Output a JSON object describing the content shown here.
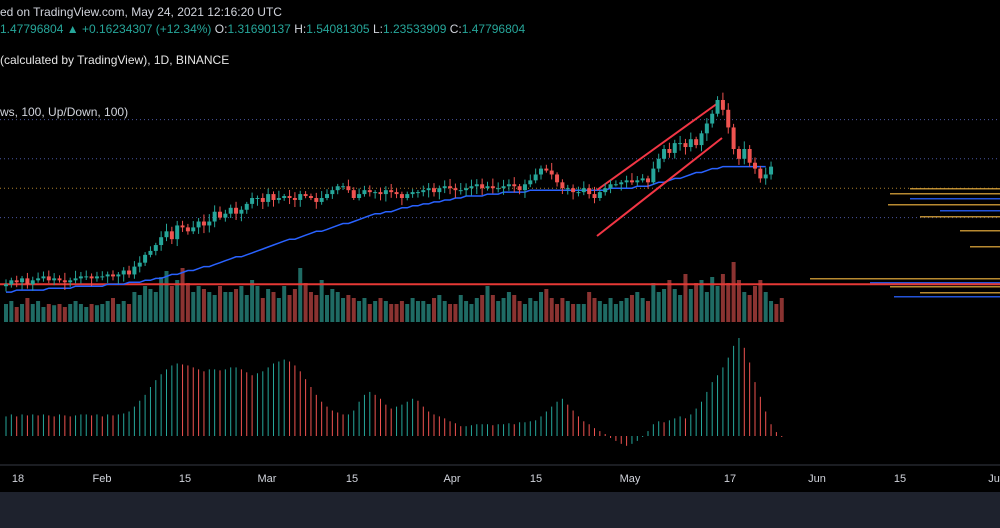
{
  "header": {
    "published": "ed on TradingView.com, May 24, 2021 12:16:20 UTC",
    "price": "1.47796804",
    "arrow": "▲",
    "change": "+0.16234307 (+12.34%)",
    "o_label": "O:",
    "o_value": "1.31690137",
    "h_label": "H:",
    "h_value": "1.54081305",
    "l_label": "L:",
    "l_value": "1.23533909",
    "c_label": "C:",
    "c_value": "1.47796804"
  },
  "symbol_line": "(calculated by TradingView), 1D, BINANCE",
  "volume_line": "ws, 100, Up/Down, 100)",
  "colors": {
    "up": "#26a69a",
    "down": "#ef5350",
    "ma": "#2962ff",
    "support": "#e53935",
    "channel": "#f23645",
    "grid_dotted": "#5d6cc7",
    "level_orange": "#d8a23a"
  },
  "chart_data": {
    "type": "candlestick",
    "title": "",
    "xlabel": "",
    "ylabel": "",
    "x_ticks": [
      "18",
      "Feb",
      "15",
      "Mar",
      "15",
      "Apr",
      "15",
      "May",
      "17",
      "Jun",
      "15",
      "Ju"
    ],
    "price_series": [
      0.56,
      0.58,
      0.57,
      0.59,
      0.56,
      0.58,
      0.59,
      0.6,
      0.58,
      0.59,
      0.58,
      0.57,
      0.58,
      0.59,
      0.6,
      0.6,
      0.59,
      0.6,
      0.6,
      0.61,
      0.6,
      0.61,
      0.63,
      0.61,
      0.65,
      0.67,
      0.71,
      0.73,
      0.76,
      0.8,
      0.83,
      0.79,
      0.86,
      0.85,
      0.83,
      0.85,
      0.88,
      0.86,
      0.88,
      0.93,
      0.9,
      0.92,
      0.95,
      0.92,
      0.94,
      0.97,
      1.0,
      1.0,
      0.98,
      1.02,
      0.99,
      1.0,
      1.01,
      1.0,
      0.99,
      1.02,
      1.01,
      1.0,
      0.98,
      1.0,
      1.02,
      1.04,
      1.06,
      1.06,
      1.04,
      1.0,
      1.02,
      1.04,
      1.03,
      1.03,
      1.02,
      1.04,
      1.03,
      1.02,
      1.0,
      1.02,
      1.03,
      1.03,
      1.04,
      1.05,
      1.03,
      1.05,
      1.06,
      1.05,
      1.04,
      1.04,
      1.05,
      1.06,
      1.07,
      1.05,
      1.06,
      1.05,
      1.05,
      1.06,
      1.07,
      1.06,
      1.04,
      1.07,
      1.09,
      1.12,
      1.15,
      1.14,
      1.12,
      1.08,
      1.05,
      1.05,
      1.03,
      1.03,
      1.05,
      1.02,
      1.0,
      1.03,
      1.05,
      1.07,
      1.07,
      1.08,
      1.09,
      1.08,
      1.09,
      1.1,
      1.08,
      1.15,
      1.2,
      1.25,
      1.23,
      1.28,
      1.28,
      1.26,
      1.3,
      1.27,
      1.33,
      1.38,
      1.43,
      1.5,
      1.45,
      1.36,
      1.25,
      1.2,
      1.25,
      1.18,
      1.15,
      1.1,
      1.12,
      1.16
    ],
    "ma_series": [
      0.52,
      0.52,
      0.53,
      0.53,
      0.53,
      0.53,
      0.53,
      0.53,
      0.54,
      0.54,
      0.54,
      0.54,
      0.54,
      0.55,
      0.55,
      0.55,
      0.55,
      0.55,
      0.55,
      0.56,
      0.56,
      0.56,
      0.56,
      0.57,
      0.57,
      0.57,
      0.58,
      0.58,
      0.59,
      0.59,
      0.6,
      0.61,
      0.61,
      0.62,
      0.63,
      0.63,
      0.64,
      0.65,
      0.65,
      0.66,
      0.67,
      0.68,
      0.69,
      0.7,
      0.7,
      0.71,
      0.72,
      0.73,
      0.74,
      0.75,
      0.76,
      0.77,
      0.78,
      0.79,
      0.79,
      0.8,
      0.81,
      0.82,
      0.83,
      0.83,
      0.84,
      0.85,
      0.86,
      0.87,
      0.87,
      0.88,
      0.89,
      0.9,
      0.91,
      0.92,
      0.92,
      0.93,
      0.93,
      0.94,
      0.95,
      0.95,
      0.96,
      0.96,
      0.97,
      0.97,
      0.98,
      0.98,
      0.99,
      0.99,
      1.0,
      1.0,
      1.01,
      1.01,
      1.01,
      1.01,
      1.02,
      1.02,
      1.02,
      1.03,
      1.03,
      1.03,
      1.03,
      1.03,
      1.04,
      1.04,
      1.04,
      1.04,
      1.04,
      1.04,
      1.04,
      1.04,
      1.04,
      1.04,
      1.04,
      1.04,
      1.04,
      1.04,
      1.04,
      1.05,
      1.05,
      1.05,
      1.05,
      1.05,
      1.06,
      1.06,
      1.06,
      1.07,
      1.08,
      1.08,
      1.09,
      1.1,
      1.1,
      1.11,
      1.12,
      1.13,
      1.13,
      1.14,
      1.15,
      1.15,
      1.16,
      1.16,
      1.16,
      1.16,
      1.16,
      1.16,
      1.16,
      1.16,
      1.16
    ],
    "volume_series": [
      0.3,
      0.35,
      0.25,
      0.3,
      0.4,
      0.3,
      0.35,
      0.25,
      0.3,
      0.28,
      0.3,
      0.25,
      0.3,
      0.35,
      0.3,
      0.25,
      0.3,
      0.28,
      0.3,
      0.35,
      0.4,
      0.3,
      0.35,
      0.3,
      0.5,
      0.45,
      0.6,
      0.55,
      0.5,
      0.75,
      0.85,
      0.6,
      0.7,
      0.9,
      0.65,
      0.5,
      0.6,
      0.55,
      0.5,
      0.45,
      0.6,
      0.5,
      0.5,
      0.55,
      0.6,
      0.45,
      0.7,
      0.6,
      0.4,
      0.55,
      0.5,
      0.4,
      0.6,
      0.45,
      0.55,
      0.9,
      0.65,
      0.5,
      0.45,
      0.7,
      0.45,
      0.55,
      0.5,
      0.4,
      0.45,
      0.4,
      0.35,
      0.4,
      0.3,
      0.35,
      0.4,
      0.35,
      0.3,
      0.3,
      0.35,
      0.3,
      0.4,
      0.35,
      0.35,
      0.3,
      0.4,
      0.45,
      0.35,
      0.3,
      0.3,
      0.45,
      0.35,
      0.3,
      0.4,
      0.45,
      0.6,
      0.45,
      0.35,
      0.4,
      0.5,
      0.45,
      0.35,
      0.3,
      0.4,
      0.35,
      0.5,
      0.55,
      0.4,
      0.3,
      0.4,
      0.35,
      0.3,
      0.3,
      0.3,
      0.5,
      0.4,
      0.35,
      0.3,
      0.4,
      0.3,
      0.35,
      0.4,
      0.45,
      0.5,
      0.4,
      0.35,
      0.65,
      0.5,
      0.55,
      0.7,
      0.55,
      0.45,
      0.8,
      0.55,
      0.65,
      0.7,
      0.5,
      0.75,
      0.6,
      0.8,
      0.65,
      1.0,
      0.7,
      0.5,
      0.45,
      0.6,
      0.7,
      0.5,
      0.35,
      0.3,
      0.4
    ],
    "oscillator_series": [
      0.2,
      0.22,
      0.2,
      0.22,
      0.21,
      0.22,
      0.21,
      0.22,
      0.21,
      0.2,
      0.22,
      0.21,
      0.2,
      0.21,
      0.22,
      0.22,
      0.21,
      0.22,
      0.2,
      0.22,
      0.21,
      0.22,
      0.23,
      0.25,
      0.3,
      0.36,
      0.42,
      0.5,
      0.57,
      0.63,
      0.68,
      0.72,
      0.74,
      0.73,
      0.72,
      0.7,
      0.68,
      0.66,
      0.68,
      0.68,
      0.67,
      0.68,
      0.7,
      0.7,
      0.68,
      0.65,
      0.62,
      0.64,
      0.66,
      0.7,
      0.74,
      0.76,
      0.78,
      0.76,
      0.72,
      0.66,
      0.58,
      0.5,
      0.42,
      0.35,
      0.3,
      0.26,
      0.24,
      0.22,
      0.22,
      0.26,
      0.35,
      0.42,
      0.45,
      0.42,
      0.38,
      0.32,
      0.28,
      0.3,
      0.32,
      0.35,
      0.38,
      0.36,
      0.3,
      0.25,
      0.22,
      0.2,
      0.18,
      0.15,
      0.13,
      0.1,
      0.1,
      0.11,
      0.12,
      0.12,
      0.12,
      0.11,
      0.12,
      0.12,
      0.13,
      0.12,
      0.14,
      0.14,
      0.15,
      0.16,
      0.2,
      0.25,
      0.3,
      0.35,
      0.38,
      0.32,
      0.26,
      0.2,
      0.15,
      0.12,
      0.08,
      0.05,
      0.02,
      -0.02,
      -0.05,
      -0.08,
      -0.1,
      -0.08,
      -0.05,
      0.0,
      0.05,
      0.12,
      0.15,
      0.14,
      0.16,
      0.18,
      0.2,
      0.18,
      0.22,
      0.28,
      0.35,
      0.45,
      0.55,
      0.62,
      0.7,
      0.8,
      0.92,
      1.0,
      0.9,
      0.75,
      0.55,
      0.4,
      0.25,
      0.12,
      0.04,
      0.0
    ],
    "horizontal_lines": {
      "support_level": 0.56,
      "upper_dotted": 1.4,
      "mid_dotted": 1.2,
      "orange_dotted": 1.05,
      "lower_dotted": 0.9
    }
  }
}
